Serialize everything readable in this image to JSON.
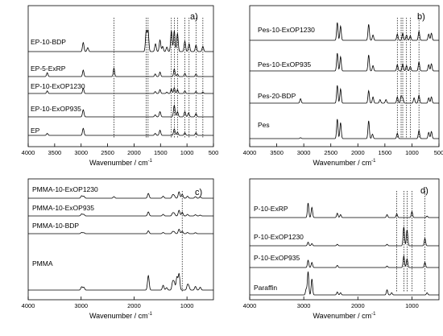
{
  "chart_data": [
    {
      "type": "line",
      "panel_label": "a)",
      "xlabel": "Wavenumber / cm",
      "xlabel_exponent": "-1",
      "xlim": [
        4000,
        500
      ],
      "xticks": [
        4000,
        3500,
        3000,
        2500,
        2000,
        1500,
        1000,
        500
      ],
      "xtick_labels": [
        "4000",
        "3500",
        "3000",
        "2500",
        "2000",
        "1500",
        "1000",
        "500"
      ],
      "series": [
        {
          "name": "EP-10-BDP",
          "peaks": [
            [
              2960,
              0.7
            ],
            [
              2875,
              0.3
            ],
            [
              1770,
              1.6
            ],
            [
              1735,
              1.6
            ],
            [
              1595,
              0.6
            ],
            [
              1510,
              0.9
            ],
            [
              1460,
              0.4
            ],
            [
              1380,
              0.35
            ],
            [
              1295,
              1.6
            ],
            [
              1240,
              1.6
            ],
            [
              1180,
              1.4
            ],
            [
              1040,
              0.8
            ],
            [
              960,
              0.6
            ],
            [
              830,
              0.5
            ],
            [
              700,
              0.4
            ]
          ]
        },
        {
          "name": "EP-5-ExRP",
          "peaks": [
            [
              3640,
              0.3
            ],
            [
              2960,
              0.5
            ],
            [
              2380,
              0.65
            ],
            [
              1600,
              0.2
            ],
            [
              1510,
              0.35
            ],
            [
              1240,
              0.6
            ],
            [
              1180,
              0.2
            ],
            [
              1040,
              0.25
            ],
            [
              830,
              0.2
            ]
          ]
        },
        {
          "name": "EP-10-ExOP1230",
          "peaks": [
            [
              3640,
              0.2
            ],
            [
              2960,
              0.4
            ],
            [
              1600,
              0.15
            ],
            [
              1510,
              0.3
            ],
            [
              1380,
              0.1
            ],
            [
              1295,
              0.35
            ],
            [
              1240,
              0.45
            ],
            [
              1180,
              0.3
            ],
            [
              1040,
              0.2
            ],
            [
              830,
              0.15
            ],
            [
              700,
              0.1
            ]
          ]
        },
        {
          "name": "EP-10-ExOP935",
          "peaks": [
            [
              2960,
              0.55
            ],
            [
              1600,
              0.15
            ],
            [
              1510,
              0.4
            ],
            [
              1240,
              0.9
            ],
            [
              1180,
              0.4
            ],
            [
              1040,
              0.4
            ],
            [
              970,
              0.3
            ],
            [
              830,
              0.25
            ]
          ]
        },
        {
          "name": "EP",
          "peaks": [
            [
              3640,
              0.15
            ],
            [
              2960,
              0.55
            ],
            [
              1600,
              0.15
            ],
            [
              1510,
              0.4
            ],
            [
              1240,
              0.5
            ],
            [
              1180,
              0.25
            ],
            [
              1040,
              0.2
            ],
            [
              830,
              0.2
            ]
          ]
        }
      ],
      "marker_lines": [
        1770,
        1735,
        2380,
        1295,
        1240,
        1180,
        1040,
        960,
        830,
        700
      ]
    },
    {
      "type": "line",
      "panel_label": "b)",
      "xlabel": "Wavenumber / cm",
      "xlabel_exponent": "-1",
      "xlim": [
        4000,
        500
      ],
      "xticks": [
        4000,
        3500,
        3000,
        2500,
        2000,
        1500,
        1000,
        500
      ],
      "xtick_labels": [
        "4000",
        "3500",
        "3000",
        "2500",
        "2000",
        "1500",
        "1000",
        "500"
      ],
      "series": [
        {
          "name": "Pes-10-ExOP1230",
          "peaks": [
            [
              2380,
              1.0
            ],
            [
              2320,
              0.8
            ],
            [
              1800,
              0.9
            ],
            [
              1720,
              0.3
            ],
            [
              1270,
              0.35
            ],
            [
              1170,
              0.4
            ],
            [
              1100,
              0.3
            ],
            [
              1030,
              0.25
            ],
            [
              870,
              0.5
            ],
            [
              690,
              0.35
            ],
            [
              640,
              0.4
            ]
          ]
        },
        {
          "name": "Pes-10-ExOP935",
          "peaks": [
            [
              2380,
              1.0
            ],
            [
              2320,
              0.8
            ],
            [
              1800,
              0.9
            ],
            [
              1720,
              0.3
            ],
            [
              1270,
              0.35
            ],
            [
              1170,
              0.4
            ],
            [
              1100,
              0.3
            ],
            [
              1030,
              0.25
            ],
            [
              870,
              0.5
            ],
            [
              690,
              0.35
            ],
            [
              640,
              0.4
            ]
          ]
        },
        {
          "name": "Pes-20-BDP",
          "peaks": [
            [
              3060,
              0.25
            ],
            [
              2380,
              1.0
            ],
            [
              2320,
              0.8
            ],
            [
              1800,
              0.7
            ],
            [
              1720,
              0.35
            ],
            [
              1590,
              0.2
            ],
            [
              1480,
              0.2
            ],
            [
              1270,
              0.35
            ],
            [
              1200,
              0.4
            ],
            [
              1170,
              0.3
            ],
            [
              960,
              0.3
            ],
            [
              870,
              0.45
            ],
            [
              690,
              0.3
            ],
            [
              640,
              0.35
            ]
          ]
        },
        {
          "name": "Pes",
          "peaks": [
            [
              3060,
              0.05
            ],
            [
              2380,
              1.1
            ],
            [
              2320,
              0.9
            ],
            [
              1800,
              1.0
            ],
            [
              1730,
              0.25
            ],
            [
              1270,
              0.3
            ],
            [
              870,
              0.45
            ],
            [
              690,
              0.35
            ],
            [
              640,
              0.4
            ]
          ]
        }
      ],
      "marker_lines": [
        1270,
        1200,
        1170,
        1100,
        1030,
        870
      ]
    },
    {
      "type": "line",
      "panel_label": "c)",
      "xlabel": "Wavenumber / cm",
      "xlabel_exponent": "-1",
      "xlim": [
        4000,
        500
      ],
      "xticks": [
        4000,
        3000,
        2000,
        1000
      ],
      "xtick_labels": [
        "4000",
        "3000",
        "2000",
        "1000"
      ],
      "series": [
        {
          "name": "PMMA-10-ExOP1230",
          "peaks": [
            [
              2990,
              0.3
            ],
            [
              2950,
              0.25
            ],
            [
              2380,
              0.2
            ],
            [
              1730,
              0.6
            ],
            [
              1450,
              0.25
            ],
            [
              1270,
              0.4
            ],
            [
              1240,
              0.3
            ],
            [
              1150,
              0.8
            ],
            [
              1090,
              0.5
            ],
            [
              990,
              0.25
            ],
            [
              840,
              0.2
            ],
            [
              750,
              0.15
            ]
          ]
        },
        {
          "name": "PMMA-10-ExOP935",
          "peaks": [
            [
              2990,
              0.25
            ],
            [
              2950,
              0.2
            ],
            [
              1730,
              0.5
            ],
            [
              1450,
              0.2
            ],
            [
              1270,
              0.35
            ],
            [
              1240,
              0.3
            ],
            [
              1150,
              0.7
            ],
            [
              1090,
              0.45
            ],
            [
              990,
              0.2
            ],
            [
              840,
              0.15
            ],
            [
              750,
              0.1
            ]
          ]
        },
        {
          "name": "PMMA-10-BDP",
          "peaks": [
            [
              2990,
              0.15
            ],
            [
              2950,
              0.12
            ],
            [
              1730,
              0.35
            ],
            [
              1450,
              0.15
            ],
            [
              1270,
              0.25
            ],
            [
              1240,
              0.2
            ],
            [
              1150,
              0.55
            ],
            [
              1090,
              0.3
            ],
            [
              990,
              0.15
            ],
            [
              840,
              0.12
            ]
          ]
        },
        {
          "name": "PMMA",
          "peaks": [
            [
              2990,
              0.4
            ],
            [
              2950,
              0.35
            ],
            [
              1730,
              1.8
            ],
            [
              1450,
              0.6
            ],
            [
              1385,
              0.3
            ],
            [
              1270,
              1.0
            ],
            [
              1240,
              0.9
            ],
            [
              1190,
              1.6
            ],
            [
              1150,
              2.0
            ],
            [
              990,
              0.6
            ],
            [
              965,
              0.4
            ],
            [
              840,
              0.45
            ],
            [
              750,
              0.35
            ]
          ]
        }
      ],
      "marker_lines": [
        1090
      ]
    },
    {
      "type": "line",
      "panel_label": "d)",
      "xlabel": "Wavenumber / cm",
      "xlabel_exponent": "-1",
      "xlim": [
        4000,
        500
      ],
      "xticks": [
        4000,
        3000,
        2000,
        1000
      ],
      "xtick_labels": [
        "4000",
        "3000",
        "2000",
        "1000"
      ],
      "series": [
        {
          "name": "P-10-ExRP",
          "peaks": [
            [
              2920,
              1.0
            ],
            [
              2850,
              0.7
            ],
            [
              2380,
              0.3
            ],
            [
              2320,
              0.2
            ],
            [
              1460,
              0.2
            ],
            [
              1280,
              0.25
            ],
            [
              1000,
              0.4
            ],
            [
              720,
              0.1
            ]
          ]
        },
        {
          "name": "P-10-ExOP1230",
          "peaks": [
            [
              2920,
              0.25
            ],
            [
              2850,
              0.15
            ],
            [
              2380,
              0.1
            ],
            [
              1460,
              0.1
            ],
            [
              1150,
              1.3
            ],
            [
              1090,
              1.1
            ],
            [
              760,
              0.5
            ]
          ]
        },
        {
          "name": "P-10-ExOP935",
          "peaks": [
            [
              2920,
              0.5
            ],
            [
              2850,
              0.35
            ],
            [
              2380,
              0.15
            ],
            [
              1460,
              0.1
            ],
            [
              1150,
              0.8
            ],
            [
              1090,
              0.6
            ],
            [
              760,
              0.35
            ]
          ]
        },
        {
          "name": "Paraffin",
          "peaks": [
            [
              2955,
              0.4
            ],
            [
              2920,
              1.6
            ],
            [
              2850,
              1.1
            ],
            [
              2380,
              0.2
            ],
            [
              2320,
              0.15
            ],
            [
              1460,
              0.35
            ],
            [
              1375,
              0.15
            ],
            [
              720,
              0.15
            ]
          ]
        }
      ],
      "marker_lines": [
        1280,
        1150,
        1090,
        1000,
        760
      ]
    }
  ]
}
